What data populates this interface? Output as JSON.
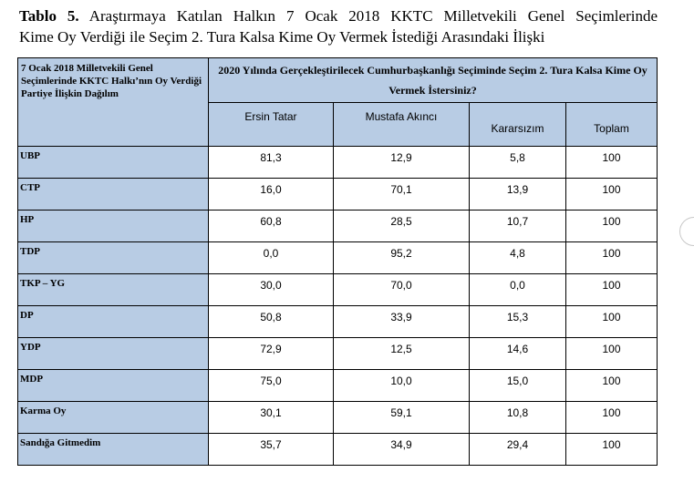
{
  "caption": {
    "label": "Tablo 5.",
    "line1": "Araştırmaya Katılan Halkın 7 Ocak 2018 KKTC Milletvekili Genel Seçimlerinde",
    "line2": "Kime Oy Verdiği ile Seçim 2. Tura Kalsa Kime Oy Vermek İstediği Arasındaki İlişki"
  },
  "table": {
    "left_header": "7 Ocak 2018 Milletvekili Genel Seçimlerinde KKTC Halkı’nın Oy Verdiği Partiye İlişkin Dağılım",
    "top_header": "2020 Yılında Gerçekleştirilecek Cumhurbaşkanlığı Seçiminde Seçim 2. Tura Kalsa Kime Oy Vermek İstersiniz?",
    "columns": [
      "Ersin Tatar",
      "Mustafa Akıncı",
      "Kararsızım",
      "Toplam"
    ],
    "rows": [
      {
        "party": "UBP",
        "values": [
          "81,3",
          "12,9",
          "5,8",
          "100"
        ]
      },
      {
        "party": "CTP",
        "values": [
          "16,0",
          "70,1",
          "13,9",
          "100"
        ]
      },
      {
        "party": "HP",
        "values": [
          "60,8",
          "28,5",
          "10,7",
          "100"
        ]
      },
      {
        "party": "TDP",
        "values": [
          "0,0",
          "95,2",
          "4,8",
          "100"
        ]
      },
      {
        "party": "TKP – YG",
        "values": [
          "30,0",
          "70,0",
          "0,0",
          "100"
        ]
      },
      {
        "party": "DP",
        "values": [
          "50,8",
          "33,9",
          "15,3",
          "100"
        ]
      },
      {
        "party": "YDP",
        "values": [
          "72,9",
          "12,5",
          "14,6",
          "100"
        ]
      },
      {
        "party": "MDP",
        "values": [
          "75,0",
          "10,0",
          "15,0",
          "100"
        ]
      },
      {
        "party": "Karma Oy",
        "values": [
          "30,1",
          "59,1",
          "10,8",
          "100"
        ]
      },
      {
        "party": "Sandığa Gitmedim",
        "values": [
          "35,7",
          "34,9",
          "29,4",
          "100"
        ]
      }
    ]
  }
}
